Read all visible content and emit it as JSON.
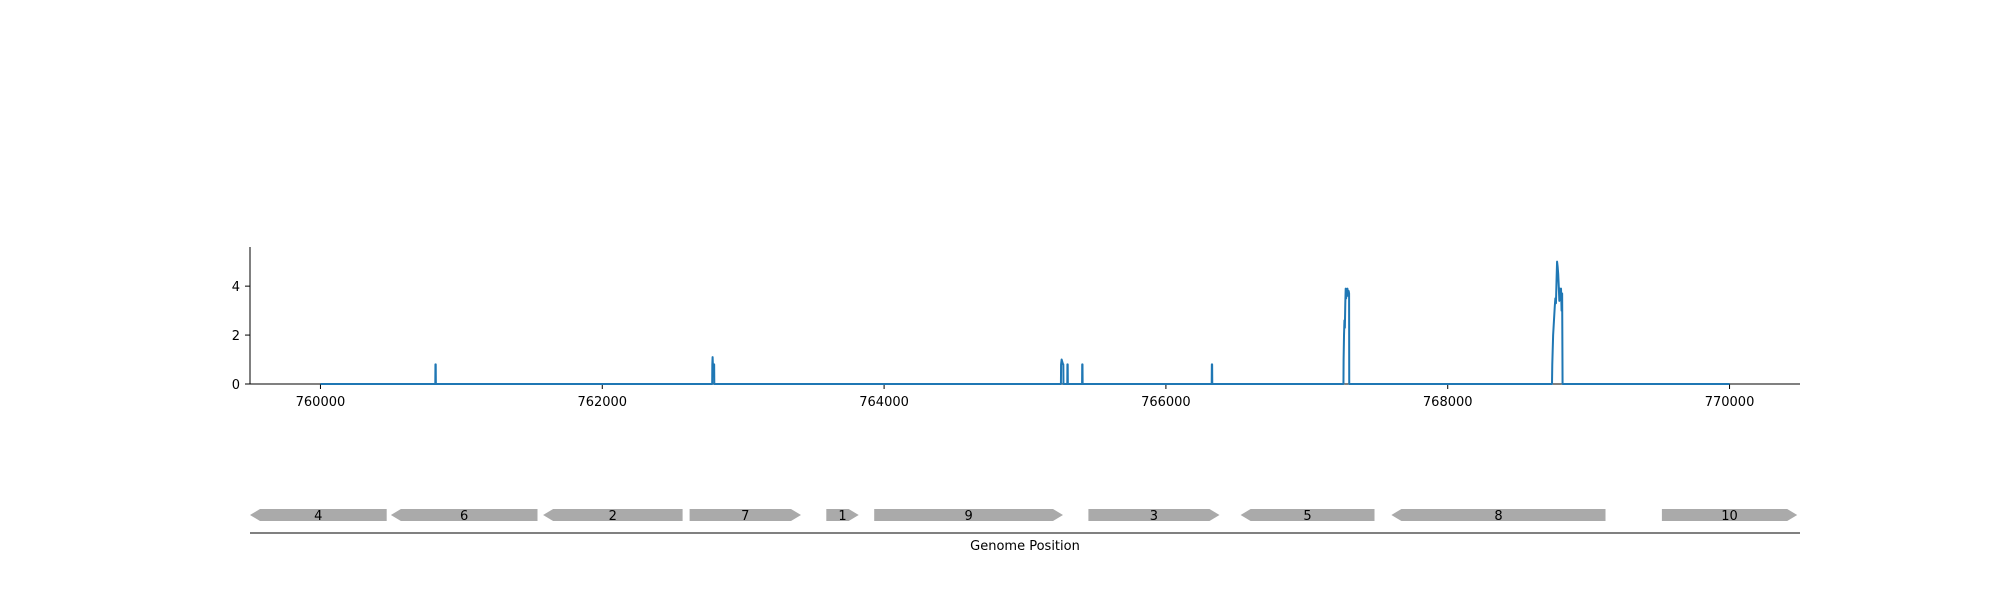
{
  "chart_data": {
    "type": "line",
    "title": "",
    "ylabel": "",
    "xlabel": "Genome Position",
    "xlim": [
      759500,
      770500
    ],
    "ylim": [
      0,
      5.6
    ],
    "x_ticks": [
      760000,
      762000,
      764000,
      766000,
      768000,
      770000
    ],
    "x_tick_labels": [
      "760000",
      "762000",
      "764000",
      "766000",
      "768000",
      "770000"
    ],
    "y_ticks": [
      0,
      2,
      4
    ],
    "y_tick_labels": [
      "0",
      "2",
      "4"
    ],
    "grid": false,
    "series_color": "#1f77b4",
    "series": [
      {
        "x": [
          760000,
          760815,
          760816,
          760818,
          760819,
          762780,
          762781,
          762783,
          762785,
          762787,
          762789,
          762790,
          762792,
          762794,
          762795,
          765255,
          765256,
          765260,
          765265,
          765270,
          765272,
          765273,
          765300,
          765301,
          765303,
          765304,
          765405,
          765406,
          765408,
          765409,
          766325,
          766326,
          766328,
          766329,
          767260,
          767261,
          767264,
          767267,
          767270,
          767273,
          767276,
          767279,
          767282,
          767285,
          767288,
          767291,
          767294,
          767297,
          767300,
          767301,
          768740,
          768742,
          768745,
          768748,
          768752,
          768756,
          768760,
          768764,
          768768,
          768772,
          768776,
          768780,
          768784,
          768788,
          768792,
          768796,
          768800,
          768804,
          768808,
          768812,
          768815,
          770000
        ],
        "y": [
          0,
          0,
          0.8,
          0.8,
          0,
          0,
          0.8,
          1.1,
          0.8,
          0.5,
          0.8,
          0.8,
          0.8,
          0.8,
          0,
          0,
          0.8,
          1.0,
          0.9,
          0.8,
          0.8,
          0,
          0,
          0.8,
          0.8,
          0,
          0,
          0.8,
          0.8,
          0,
          0,
          0.8,
          0.8,
          0,
          0,
          1.0,
          2.0,
          2.6,
          2.3,
          3.3,
          3.9,
          3.5,
          3.7,
          3.6,
          3.9,
          3.8,
          3.6,
          3.8,
          3.7,
          0,
          0,
          0.8,
          1.4,
          2.0,
          2.4,
          2.8,
          3.2,
          3.5,
          3.3,
          4.2,
          5.0,
          4.8,
          4.5,
          4.0,
          3.4,
          3.9,
          3.6,
          3.9,
          3.0,
          3.7,
          0,
          0
        ]
      }
    ],
    "genes": [
      {
        "label": "4",
        "start": 759500,
        "end": 760470,
        "strand": "-"
      },
      {
        "label": "6",
        "start": 760500,
        "end": 761540,
        "strand": "-"
      },
      {
        "label": "2",
        "start": 761580,
        "end": 762570,
        "strand": "-"
      },
      {
        "label": "7",
        "start": 762620,
        "end": 763410,
        "strand": "+"
      },
      {
        "label": "1",
        "start": 763590,
        "end": 763820,
        "strand": "+"
      },
      {
        "label": "9",
        "start": 763930,
        "end": 765270,
        "strand": "+"
      },
      {
        "label": "3",
        "start": 765450,
        "end": 766380,
        "strand": "+"
      },
      {
        "label": "5",
        "start": 766530,
        "end": 767480,
        "strand": "-"
      },
      {
        "label": "8",
        "start": 767600,
        "end": 769120,
        "strand": "-"
      },
      {
        "label": "10",
        "start": 769520,
        "end": 770480,
        "strand": "+"
      }
    ],
    "gene_color": "#aaaaaa"
  }
}
